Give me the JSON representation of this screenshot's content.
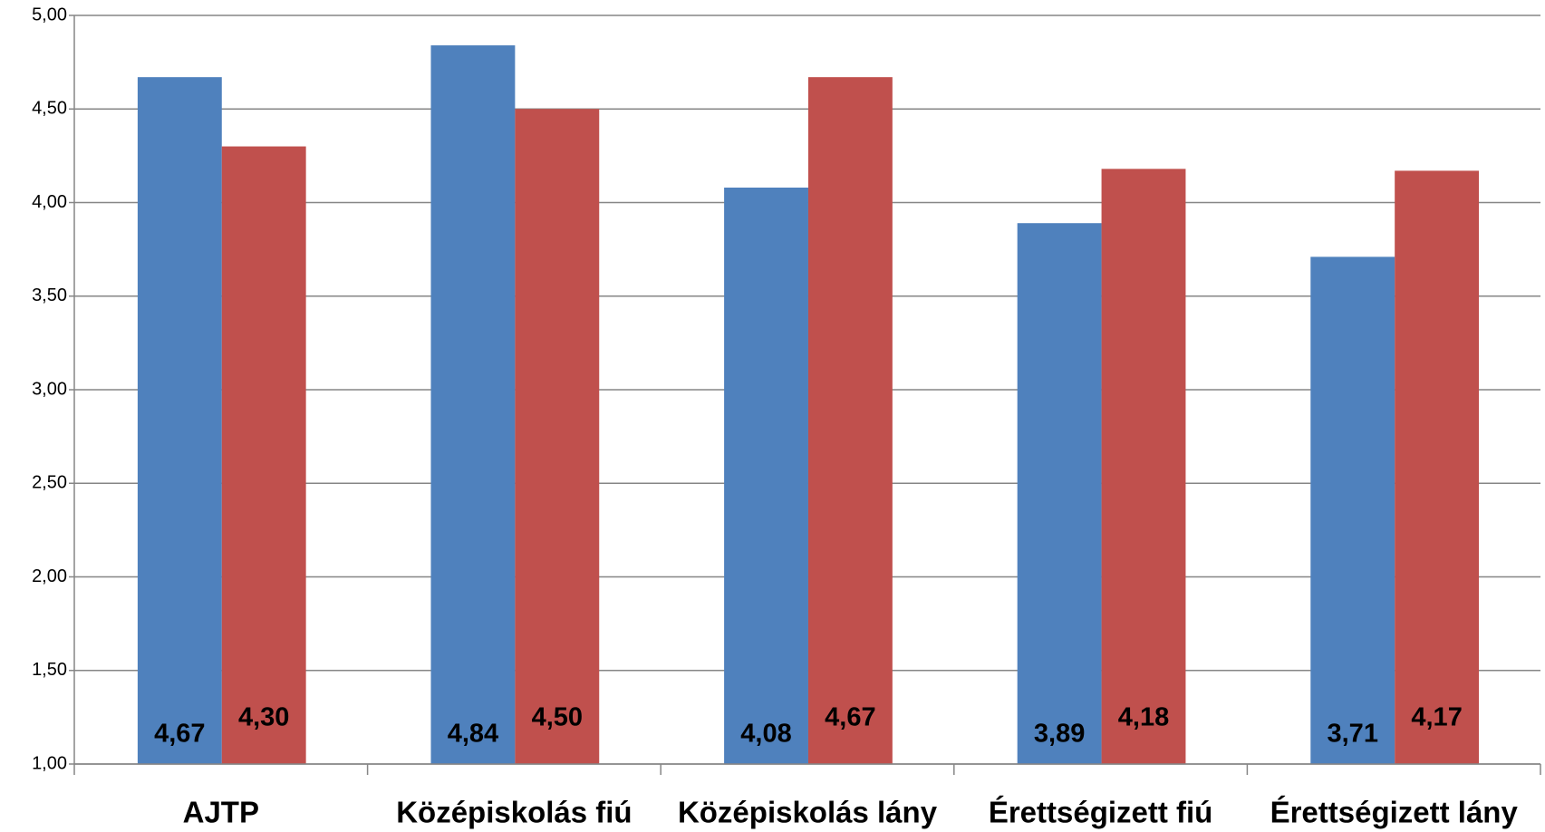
{
  "chart_data": {
    "type": "bar",
    "categories": [
      "AJTP",
      "Középiskolás fiú",
      "Középiskolás lány",
      "Érettségizett fiú",
      "Érettségizett lány"
    ],
    "series": [
      {
        "color": "#4f81bd",
        "values": [
          4.67,
          4.84,
          4.08,
          3.89,
          3.71
        ],
        "value_labels": [
          "4,67",
          "4,84",
          "4,08",
          "3,89",
          "3,71"
        ]
      },
      {
        "color": "#c0504d",
        "values": [
          4.3,
          4.5,
          4.67,
          4.18,
          4.17
        ],
        "value_labels": [
          "4,30",
          "4,50",
          "4,67",
          "4,18",
          "4,17"
        ]
      }
    ],
    "ylim": [
      1,
      5
    ],
    "yticks": [
      {
        "value": 1,
        "label": "1,00"
      },
      {
        "value": 1.5,
        "label": "1,50"
      },
      {
        "value": 2,
        "label": "2,00"
      },
      {
        "value": 2.5,
        "label": "2,50"
      },
      {
        "value": 3,
        "label": "3,00"
      },
      {
        "value": 3.5,
        "label": "3,50"
      },
      {
        "value": 4,
        "label": "4,00"
      },
      {
        "value": 4.5,
        "label": "4,50"
      },
      {
        "value": 5,
        "label": "5,00"
      }
    ],
    "grid": true
  }
}
